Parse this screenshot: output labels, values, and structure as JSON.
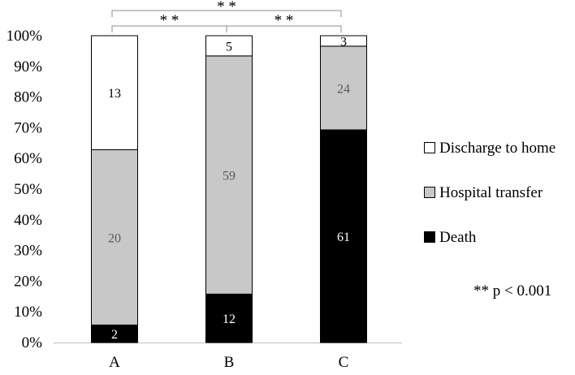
{
  "chart_data": {
    "type": "bar",
    "stacked": true,
    "normalized": true,
    "categories": [
      "A",
      "B",
      "C"
    ],
    "series": [
      {
        "name": "Death",
        "values": [
          2,
          12,
          61
        ],
        "color": "#000000",
        "label_color": "#ffffff"
      },
      {
        "name": "Hospital transfer",
        "values": [
          20,
          59,
          24
        ],
        "color": "#c8c8c8",
        "label_color": "#595959"
      },
      {
        "name": "Discharge to home",
        "values": [
          13,
          5,
          3
        ],
        "color": "#ffffff",
        "label_color": "#000000"
      }
    ],
    "ylim": [
      0,
      100
    ],
    "yticks": [
      "0%",
      "10%",
      "20%",
      "30%",
      "40%",
      "50%",
      "60%",
      "70%",
      "80%",
      "90%",
      "100%"
    ],
    "grid": false,
    "legend_position": "right",
    "legend_order": [
      "Discharge to home",
      "Hospital transfer",
      "Death"
    ],
    "significance": [
      {
        "from": "A",
        "to": "B",
        "label": "* *"
      },
      {
        "from": "B",
        "to": "C",
        "label": "* *"
      },
      {
        "from": "A",
        "to": "C",
        "label": "* *"
      }
    ],
    "note": "** p < 0.001"
  }
}
